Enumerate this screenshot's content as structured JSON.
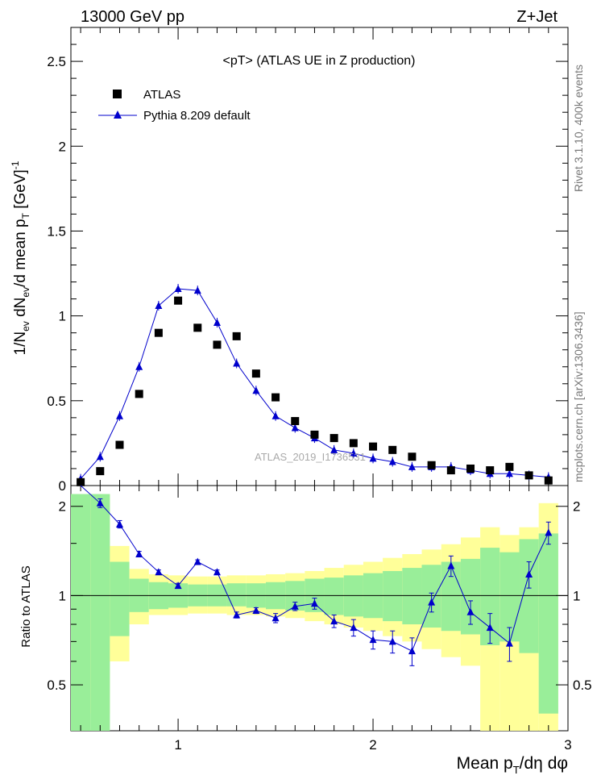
{
  "header": {
    "left": "13000 GeV pp",
    "right": "Z+Jet"
  },
  "side_labels": {
    "rivet": "Rivet 3.1.10,  400k events",
    "mcplots": "mcplots.cern.ch [arXiv:1306.3436]"
  },
  "watermark": "ATLAS_2019_I1736531",
  "chart_data": {
    "type": "scatter",
    "title": "<pT> (ATLAS UE in Z production)",
    "xlabel": "Mean p_T/dη dφ",
    "ylabel": "1/N_ev dN_ev/d mean p_T [GeV]^-1",
    "ratio_ylabel": "Ratio to ATLAS",
    "xlim": [
      0.45,
      3.0
    ],
    "ylim": [
      0,
      2.7
    ],
    "ratio_ylim": [
      0.35,
      2.35
    ],
    "x_ticks": [
      "1",
      "2",
      "3"
    ],
    "y_ticks": [
      "0",
      "0.5",
      "1",
      "1.5",
      "2",
      "2.5"
    ],
    "ratio_ticks": [
      "0.5",
      "1",
      "2"
    ],
    "legend_position": "top-left",
    "colors": {
      "mc": "#0000cc",
      "data": "#000000",
      "band_inner": "#99ee99",
      "band_outer": "#ffff99"
    },
    "x": [
      0.5,
      0.6,
      0.7,
      0.8,
      0.9,
      1.0,
      1.1,
      1.2,
      1.3,
      1.4,
      1.5,
      1.6,
      1.7,
      1.8,
      1.9,
      2.0,
      2.1,
      2.2,
      2.3,
      2.4,
      2.5,
      2.6,
      2.7,
      2.8,
      2.9
    ],
    "series": [
      {
        "name": "ATLAS",
        "marker": "square",
        "values": [
          0.02,
          0.085,
          0.24,
          0.54,
          0.9,
          1.09,
          0.93,
          0.83,
          0.88,
          0.66,
          0.52,
          0.38,
          0.3,
          0.28,
          0.25,
          0.23,
          0.21,
          0.17,
          0.12,
          0.09,
          0.1,
          0.09,
          0.11,
          0.06,
          0.03
        ]
      },
      {
        "name": "Pythia 8.209 default",
        "marker": "triangle",
        "values": [
          0.04,
          0.17,
          0.41,
          0.7,
          1.06,
          1.16,
          1.15,
          0.96,
          0.72,
          0.56,
          0.41,
          0.34,
          0.28,
          0.21,
          0.19,
          0.16,
          0.14,
          0.11,
          0.11,
          0.11,
          0.09,
          0.07,
          0.07,
          0.06,
          0.05
        ]
      }
    ],
    "ratio": {
      "values": [
        2.4,
        2.05,
        1.74,
        1.38,
        1.2,
        1.08,
        1.3,
        1.2,
        0.86,
        0.89,
        0.84,
        0.92,
        0.94,
        0.82,
        0.78,
        0.71,
        0.7,
        0.65,
        0.95,
        1.26,
        0.88,
        0.78,
        0.69,
        1.18,
        1.63
      ],
      "errors": [
        0.1,
        0.07,
        0.05,
        0.03,
        0.02,
        0.02,
        0.02,
        0.02,
        0.02,
        0.02,
        0.03,
        0.03,
        0.04,
        0.04,
        0.05,
        0.05,
        0.06,
        0.07,
        0.07,
        0.1,
        0.08,
        0.09,
        0.09,
        0.12,
        0.14
      ],
      "band_inner": [
        [
          0.35,
          2.2
        ],
        [
          0.35,
          2.2
        ],
        [
          0.73,
          1.3
        ],
        [
          0.88,
          1.14
        ],
        [
          0.9,
          1.11
        ],
        [
          0.91,
          1.1
        ],
        [
          0.92,
          1.09
        ],
        [
          0.92,
          1.09
        ],
        [
          0.92,
          1.1
        ],
        [
          0.91,
          1.1
        ],
        [
          0.9,
          1.11
        ],
        [
          0.89,
          1.12
        ],
        [
          0.88,
          1.14
        ],
        [
          0.86,
          1.15
        ],
        [
          0.85,
          1.17
        ],
        [
          0.84,
          1.19
        ],
        [
          0.82,
          1.21
        ],
        [
          0.8,
          1.24
        ],
        [
          0.78,
          1.27
        ],
        [
          0.76,
          1.3
        ],
        [
          0.74,
          1.33
        ],
        [
          0.68,
          1.45
        ],
        [
          0.7,
          1.4
        ],
        [
          0.64,
          1.55
        ],
        [
          0.4,
          1.62
        ]
      ],
      "band_outer": [
        [
          0.35,
          2.2
        ],
        [
          0.4,
          2.2
        ],
        [
          0.6,
          1.47
        ],
        [
          0.8,
          1.23
        ],
        [
          0.86,
          1.18
        ],
        [
          0.86,
          1.17
        ],
        [
          0.87,
          1.16
        ],
        [
          0.87,
          1.16
        ],
        [
          0.86,
          1.17
        ],
        [
          0.86,
          1.17
        ],
        [
          0.85,
          1.18
        ],
        [
          0.84,
          1.19
        ],
        [
          0.82,
          1.21
        ],
        [
          0.8,
          1.24
        ],
        [
          0.78,
          1.27
        ],
        [
          0.76,
          1.3
        ],
        [
          0.73,
          1.34
        ],
        [
          0.7,
          1.38
        ],
        [
          0.66,
          1.43
        ],
        [
          0.62,
          1.49
        ],
        [
          0.58,
          1.57
        ],
        [
          0.35,
          1.7
        ],
        [
          0.35,
          1.6
        ],
        [
          0.35,
          1.7
        ],
        [
          0.35,
          2.05
        ]
      ]
    }
  }
}
